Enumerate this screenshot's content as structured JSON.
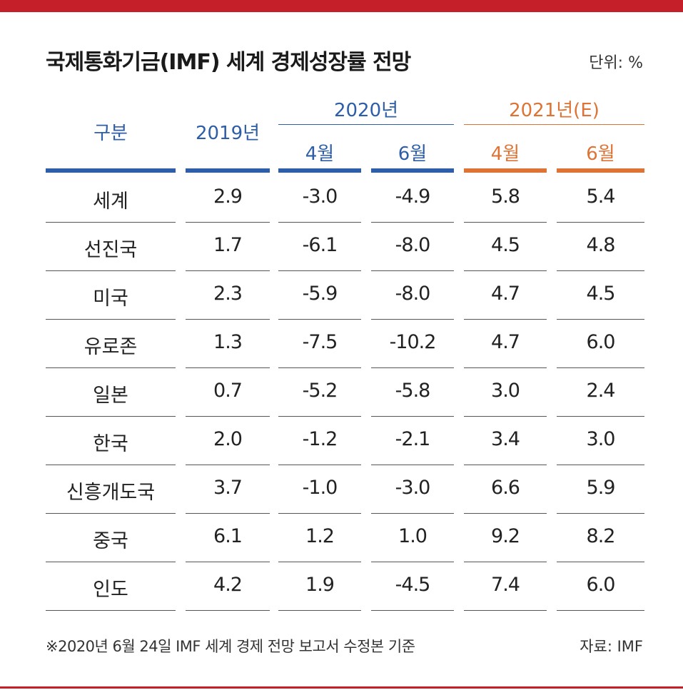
{
  "title": "국제통화기금(IMF) 세계 경제성장률 전망",
  "unit": "단위: %",
  "header": {
    "category": "구분",
    "year2019": "2019년",
    "year2020": "2020년",
    "year2021": "2021년(E)",
    "apr": "4월",
    "jun": "6월",
    "apr_2021": "4월",
    "jun_2021": "6월"
  },
  "colors": {
    "accent_blue": "#2e5ea8",
    "accent_orange": "#dd7334",
    "brand_red": "#c5202a"
  },
  "chart_data": {
    "type": "table",
    "columns": [
      "구분",
      "2019년",
      "2020년 4월",
      "2020년 6월",
      "2021년(E) 4월",
      "2021년(E) 6월"
    ],
    "rows": [
      {
        "label": "세계",
        "values": [
          "2.9",
          "-3.0",
          "-4.9",
          "5.8",
          "5.4"
        ]
      },
      {
        "label": "선진국",
        "values": [
          "1.7",
          "-6.1",
          "-8.0",
          "4.5",
          "4.8"
        ]
      },
      {
        "label": "미국",
        "values": [
          "2.3",
          "-5.9",
          "-8.0",
          "4.7",
          "4.5"
        ]
      },
      {
        "label": "유로존",
        "values": [
          "1.3",
          "-7.5",
          "-10.2",
          "4.7",
          "6.0"
        ]
      },
      {
        "label": "일본",
        "values": [
          "0.7",
          "-5.2",
          "-5.8",
          "3.0",
          "2.4"
        ]
      },
      {
        "label": "한국",
        "values": [
          "2.0",
          "-1.2",
          "-2.1",
          "3.4",
          "3.0"
        ]
      },
      {
        "label": "신흥개도국",
        "values": [
          "3.7",
          "-1.0",
          "-3.0",
          "6.6",
          "5.9"
        ]
      },
      {
        "label": "중국",
        "values": [
          "6.1",
          "1.2",
          "1.0",
          "9.2",
          "8.2"
        ]
      },
      {
        "label": "인도",
        "values": [
          "4.2",
          "1.9",
          "-4.5",
          "7.4",
          "6.0"
        ]
      }
    ]
  },
  "footnote": "※2020년 6월 24일 IMF 세계 경제 전망 보고서 수정본 기준",
  "source": "자료: IMF"
}
